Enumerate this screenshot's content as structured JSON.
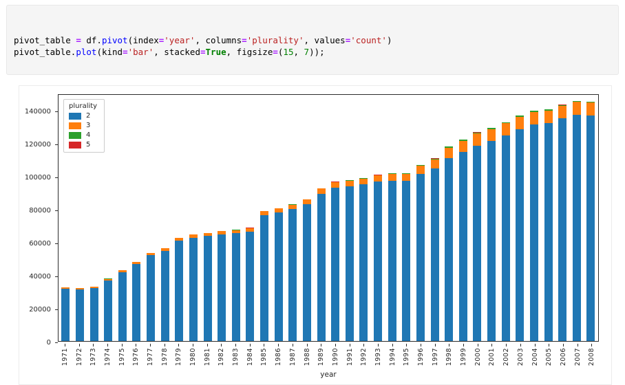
{
  "code_cell": {
    "lines": [
      {
        "tokens": [
          {
            "t": "pivot_table ",
            "c": "plain"
          },
          {
            "t": "=",
            "c": "op"
          },
          {
            "t": " df",
            "c": "plain"
          },
          {
            "t": ".",
            "c": "plain"
          },
          {
            "t": "pivot",
            "c": "fn"
          },
          {
            "t": "(index",
            "c": "plain"
          },
          {
            "t": "=",
            "c": "op"
          },
          {
            "t": "'year'",
            "c": "str"
          },
          {
            "t": ", columns",
            "c": "plain"
          },
          {
            "t": "=",
            "c": "op"
          },
          {
            "t": "'plurality'",
            "c": "str"
          },
          {
            "t": ", values",
            "c": "plain"
          },
          {
            "t": "=",
            "c": "op"
          },
          {
            "t": "'count'",
            "c": "str"
          },
          {
            "t": ")",
            "c": "plain"
          }
        ]
      },
      {
        "tokens": [
          {
            "t": "pivot_table",
            "c": "plain"
          },
          {
            "t": ".",
            "c": "plain"
          },
          {
            "t": "plot",
            "c": "fn"
          },
          {
            "t": "(kind",
            "c": "plain"
          },
          {
            "t": "=",
            "c": "op"
          },
          {
            "t": "'bar'",
            "c": "str"
          },
          {
            "t": ", stacked",
            "c": "plain"
          },
          {
            "t": "=",
            "c": "op"
          },
          {
            "t": "True",
            "c": "kw"
          },
          {
            "t": ", figsize",
            "c": "plain"
          },
          {
            "t": "=",
            "c": "op"
          },
          {
            "t": "(",
            "c": "plain"
          },
          {
            "t": "15",
            "c": "num"
          },
          {
            "t": ", ",
            "c": "plain"
          },
          {
            "t": "7",
            "c": "num"
          },
          {
            "t": "));",
            "c": "plain"
          }
        ]
      }
    ]
  },
  "chart_data": {
    "type": "bar",
    "stacked": true,
    "title": "",
    "xlabel": "year",
    "ylabel": "",
    "ylim": [
      0,
      150000
    ],
    "yticks": [
      0,
      20000,
      40000,
      60000,
      80000,
      100000,
      120000,
      140000
    ],
    "grid": false,
    "legend": {
      "title": "plurality",
      "position": "upper left"
    },
    "categories": [
      "1971",
      "1972",
      "1973",
      "1974",
      "1975",
      "1976",
      "1977",
      "1978",
      "1979",
      "1980",
      "1981",
      "1982",
      "1983",
      "1984",
      "1985",
      "1986",
      "1987",
      "1988",
      "1989",
      "1990",
      "1991",
      "1992",
      "1993",
      "1994",
      "1995",
      "1996",
      "1997",
      "1998",
      "1999",
      "2000",
      "2001",
      "2002",
      "2003",
      "2004",
      "2005",
      "2006",
      "2007",
      "2008"
    ],
    "series": [
      {
        "name": "2",
        "color": "#1f77b4",
        "values": [
          31600,
          31200,
          32200,
          36800,
          41800,
          46800,
          52200,
          54800,
          61000,
          62800,
          63800,
          64800,
          65400,
          66400,
          76400,
          78000,
          80000,
          83000,
          89400,
          93000,
          94000,
          95000,
          96600,
          97400,
          97000,
          101400,
          104600,
          110800,
          114600,
          118600,
          121200,
          124600,
          128600,
          131400,
          132200,
          135000,
          137200,
          136800
        ]
      },
      {
        "name": "3",
        "color": "#ff7f0e",
        "values": [
          900,
          900,
          950,
          1000,
          1100,
          1200,
          1300,
          1400,
          1600,
          1700,
          1800,
          1900,
          2000,
          2100,
          2300,
          2500,
          2700,
          2900,
          3100,
          3300,
          3400,
          3600,
          3800,
          4000,
          4300,
          4800,
          5500,
          6300,
          6800,
          7200,
          7300,
          7400,
          7500,
          7600,
          7600,
          7700,
          7800,
          7700
        ]
      },
      {
        "name": "4",
        "color": "#2ca02c",
        "values": [
          60,
          60,
          65,
          70,
          80,
          85,
          90,
          95,
          105,
          110,
          115,
          120,
          130,
          140,
          160,
          170,
          190,
          210,
          230,
          260,
          280,
          310,
          340,
          370,
          410,
          520,
          640,
          730,
          720,
          740,
          700,
          660,
          620,
          580,
          540,
          510,
          480,
          470
        ]
      },
      {
        "name": "5",
        "color": "#d62728",
        "values": [
          10,
          10,
          10,
          12,
          12,
          14,
          14,
          16,
          18,
          18,
          20,
          20,
          22,
          24,
          26,
          28,
          30,
          35,
          38,
          40,
          45,
          50,
          55,
          60,
          65,
          75,
          85,
          95,
          90,
          85,
          80,
          70,
          65,
          60,
          55,
          50,
          45,
          45
        ]
      }
    ]
  }
}
